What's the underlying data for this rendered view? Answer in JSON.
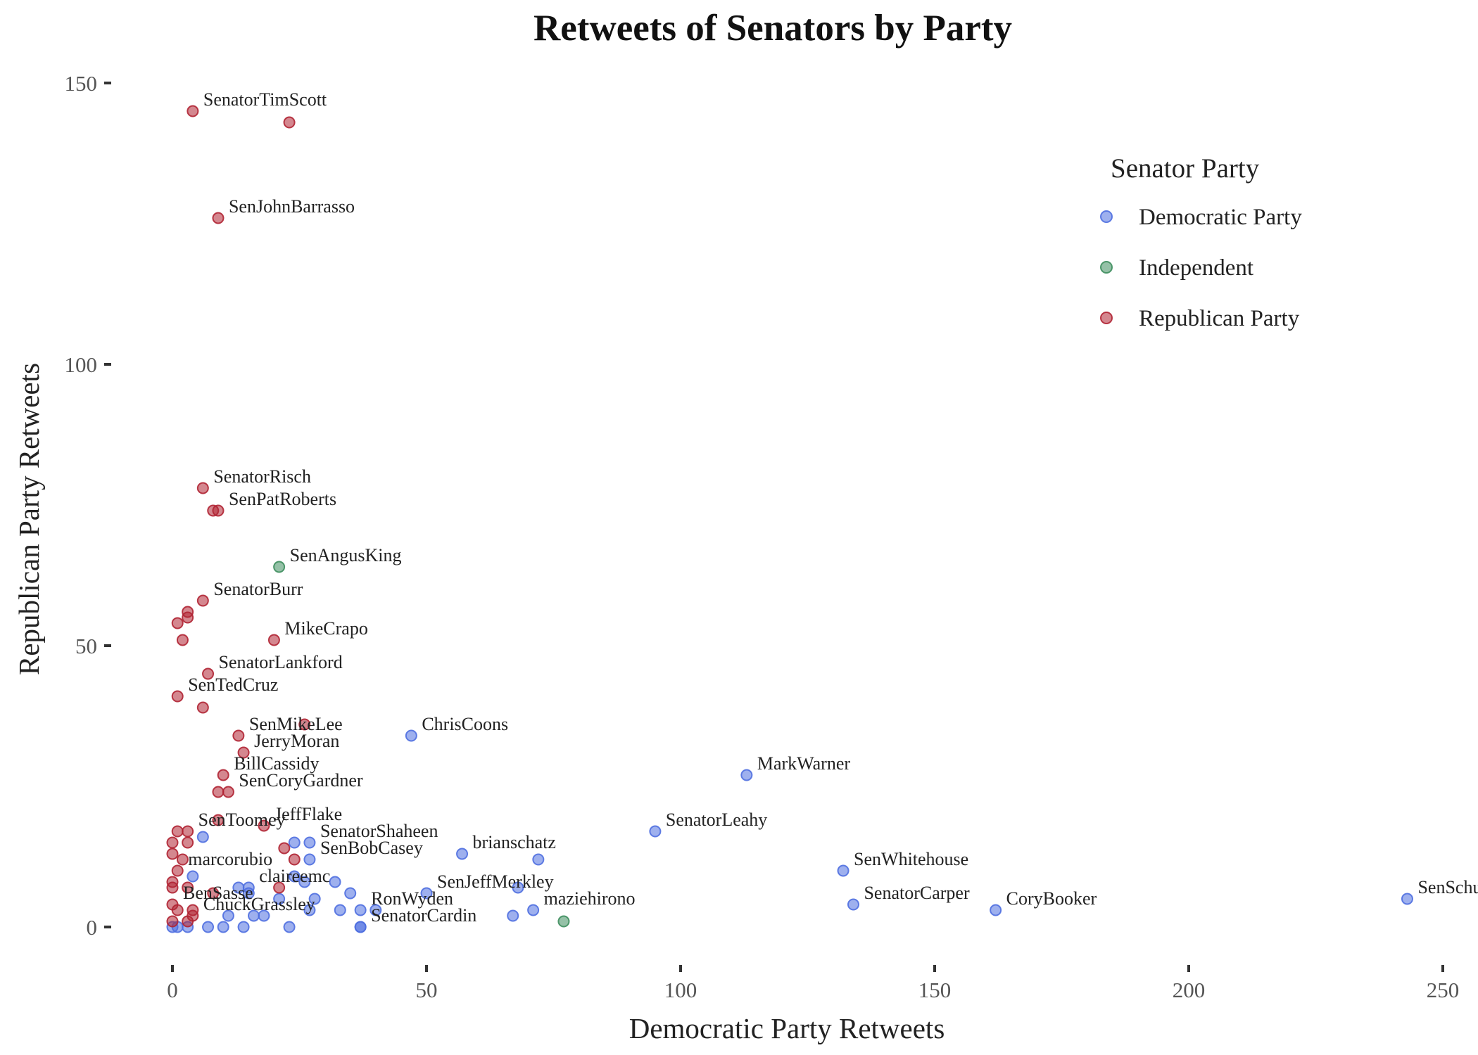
{
  "chart_data": {
    "type": "scatter",
    "title": "Retweets of Senators by Party",
    "xlabel": "Democratic Party Retweets",
    "ylabel": "Republican Party Retweets",
    "xlim": [
      -5,
      252
    ],
    "ylim": [
      -6,
      153
    ],
    "xticks": [
      0,
      50,
      100,
      150,
      200,
      250
    ],
    "yticks": [
      0,
      50,
      100,
      150
    ],
    "grid": false,
    "legend": {
      "title": "Senator Party",
      "placement": "top-right",
      "entries": [
        {
          "name": "Democratic Party",
          "color": "#4F6FE0"
        },
        {
          "name": "Independent",
          "color": "#3E8E5E"
        },
        {
          "name": "Republican Party",
          "color": "#B02433"
        }
      ]
    },
    "series": [
      {
        "name": "Democratic Party",
        "color": "#4F6FE0",
        "points": [
          {
            "x": 47,
            "y": 34,
            "label": "ChrisCoons"
          },
          {
            "x": 113,
            "y": 27,
            "label": "MarkWarner"
          },
          {
            "x": 95,
            "y": 17,
            "label": "SenatorLeahy"
          },
          {
            "x": 132,
            "y": 10,
            "label": "SenWhitehouse"
          },
          {
            "x": 134,
            "y": 4,
            "label": "SenatorCarper"
          },
          {
            "x": 162,
            "y": 3,
            "label": "CoryBooker"
          },
          {
            "x": 243,
            "y": 5,
            "label": "SenSchumer"
          },
          {
            "x": 57,
            "y": 13,
            "label": "brianschatz"
          },
          {
            "x": 72,
            "y": 12
          },
          {
            "x": 27,
            "y": 15,
            "label": "SenatorShaheen"
          },
          {
            "x": 24,
            "y": 15
          },
          {
            "x": 27,
            "y": 12,
            "label": "SenBobCasey"
          },
          {
            "x": 50,
            "y": 6,
            "label": "SenJeffMerkley"
          },
          {
            "x": 68,
            "y": 7
          },
          {
            "x": 71,
            "y": 3,
            "label": "maziehirono"
          },
          {
            "x": 67,
            "y": 2
          },
          {
            "x": 37,
            "y": 3,
            "label": "RonWyden"
          },
          {
            "x": 33,
            "y": 3
          },
          {
            "x": 40,
            "y": 3
          },
          {
            "x": 37,
            "y": 0,
            "label": "SenatorCardin"
          },
          {
            "x": 37,
            "y": 0
          },
          {
            "x": 15,
            "y": 7,
            "label": "claireemc"
          },
          {
            "x": 13,
            "y": 7
          },
          {
            "x": 24,
            "y": 9
          },
          {
            "x": 26,
            "y": 8
          },
          {
            "x": 21,
            "y": 5
          },
          {
            "x": 28,
            "y": 5
          },
          {
            "x": 32,
            "y": 8
          },
          {
            "x": 35,
            "y": 6
          },
          {
            "x": 27,
            "y": 3
          },
          {
            "x": 6,
            "y": 16
          },
          {
            "x": 4,
            "y": 9
          },
          {
            "x": 3,
            "y": 0
          },
          {
            "x": 1,
            "y": 0
          },
          {
            "x": 7,
            "y": 0
          },
          {
            "x": 10,
            "y": 0
          },
          {
            "x": 14,
            "y": 0
          },
          {
            "x": 23,
            "y": 0
          },
          {
            "x": 11,
            "y": 2
          },
          {
            "x": 16,
            "y": 2
          },
          {
            "x": 18,
            "y": 2
          },
          {
            "x": 15,
            "y": 6
          },
          {
            "x": 0,
            "y": 0
          }
        ]
      },
      {
        "name": "Independent",
        "color": "#3E8E5E",
        "points": [
          {
            "x": 21,
            "y": 64,
            "label": "SenAngusKing"
          },
          {
            "x": 77,
            "y": 1
          }
        ]
      },
      {
        "name": "Republican Party",
        "color": "#B02433",
        "points": [
          {
            "x": 4,
            "y": 145,
            "label": "SenatorTimScott"
          },
          {
            "x": 23,
            "y": 143
          },
          {
            "x": 9,
            "y": 126,
            "label": "SenJohnBarrasso"
          },
          {
            "x": 6,
            "y": 78,
            "label": "SenatorRisch"
          },
          {
            "x": 8,
            "y": 74
          },
          {
            "x": 9,
            "y": 74,
            "label": "SenPatRoberts"
          },
          {
            "x": 6,
            "y": 58,
            "label": "SenatorBurr"
          },
          {
            "x": 3,
            "y": 56
          },
          {
            "x": 3,
            "y": 55
          },
          {
            "x": 1,
            "y": 54
          },
          {
            "x": 2,
            "y": 51
          },
          {
            "x": 20,
            "y": 51,
            "label": "MikeCrapo"
          },
          {
            "x": 7,
            "y": 45,
            "label": "SenatorLankford"
          },
          {
            "x": 1,
            "y": 41,
            "label": "SenTedCruz"
          },
          {
            "x": 6,
            "y": 39
          },
          {
            "x": 26,
            "y": 36
          },
          {
            "x": 13,
            "y": 34,
            "label": "SenMikeLee"
          },
          {
            "x": 14,
            "y": 31,
            "label": "JerryMoran"
          },
          {
            "x": 10,
            "y": 27,
            "label": "BillCassidy"
          },
          {
            "x": 9,
            "y": 24
          },
          {
            "x": 11,
            "y": 24,
            "label": "SenCoryGardner"
          },
          {
            "x": 9,
            "y": 19
          },
          {
            "x": 18,
            "y": 18,
            "label": "JeffFlake"
          },
          {
            "x": 1,
            "y": 17
          },
          {
            "x": 3,
            "y": 17,
            "label": "SenToomey"
          },
          {
            "x": 0,
            "y": 15
          },
          {
            "x": 3,
            "y": 15
          },
          {
            "x": 0,
            "y": 13
          },
          {
            "x": 22,
            "y": 14
          },
          {
            "x": 24,
            "y": 12
          },
          {
            "x": 2,
            "y": 12
          },
          {
            "x": 1,
            "y": 10,
            "label": "marcorubio"
          },
          {
            "x": 0,
            "y": 8
          },
          {
            "x": 0,
            "y": 7
          },
          {
            "x": 3,
            "y": 7
          },
          {
            "x": 21,
            "y": 7
          },
          {
            "x": 8,
            "y": 6
          },
          {
            "x": 0,
            "y": 4,
            "label": "BenSasse"
          },
          {
            "x": 1,
            "y": 3
          },
          {
            "x": 4,
            "y": 3
          },
          {
            "x": 4,
            "y": 2,
            "label": "ChuckGrassley"
          },
          {
            "x": 0,
            "y": 1
          },
          {
            "x": 3,
            "y": 1
          }
        ]
      }
    ]
  }
}
